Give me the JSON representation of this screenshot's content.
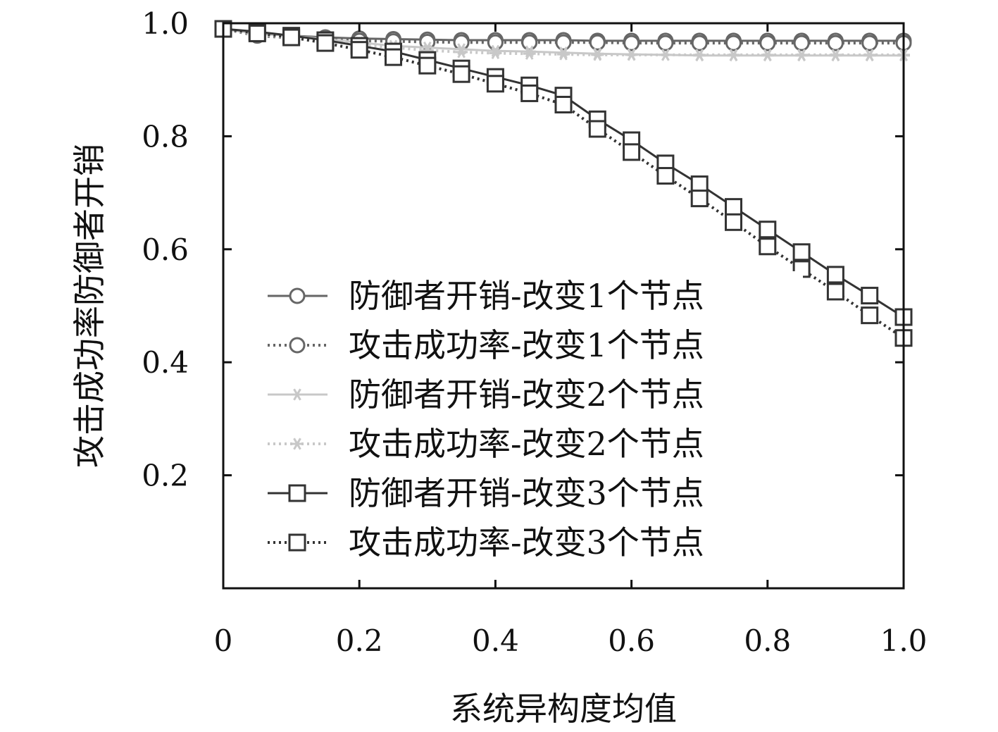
{
  "chart_data": {
    "type": "line",
    "xlabel": "系统异构度均值",
    "ylabel": "攻击成功率防御者开销",
    "xlim": [
      0,
      1.0
    ],
    "ylim": [
      0,
      1.0
    ],
    "x_ticks": [
      "0",
      "0.2",
      "0.4",
      "0.6",
      "0.8",
      "1.0"
    ],
    "y_ticks": [
      "0.2",
      "0.4",
      "0.6",
      "0.8",
      "1.0"
    ],
    "grid": false,
    "legend_position": "center-left",
    "x": [
      0,
      0.05,
      0.1,
      0.15,
      0.2,
      0.25,
      0.3,
      0.35,
      0.4,
      0.45,
      0.5,
      0.55,
      0.6,
      0.65,
      0.7,
      0.75,
      0.8,
      0.85,
      0.9,
      0.95,
      1.0
    ],
    "series": [
      {
        "name": "防御者开销-改变1个节点",
        "color": "#666666",
        "marker": "circle",
        "dash": "solid",
        "values": [
          0.99,
          0.982,
          0.978,
          0.975,
          0.973,
          0.972,
          0.971,
          0.97,
          0.97,
          0.97,
          0.97,
          0.969,
          0.969,
          0.969,
          0.969,
          0.969,
          0.969,
          0.969,
          0.969,
          0.969,
          0.969
        ]
      },
      {
        "name": "攻击成功率-改变1个节点",
        "color": "#666666",
        "marker": "circle",
        "dash": "dotted",
        "values": [
          0.99,
          0.978,
          0.974,
          0.971,
          0.969,
          0.968,
          0.967,
          0.966,
          0.966,
          0.966,
          0.966,
          0.966,
          0.965,
          0.965,
          0.965,
          0.965,
          0.965,
          0.965,
          0.965,
          0.965,
          0.965
        ]
      },
      {
        "name": "防御者开销-改变2个节点",
        "color": "#c8c8c8",
        "marker": "asterisk",
        "dash": "solid",
        "values": [
          0.99,
          0.983,
          0.978,
          0.972,
          0.966,
          0.96,
          0.957,
          0.954,
          0.951,
          0.95,
          0.948,
          0.946,
          0.945,
          0.944,
          0.943,
          0.943,
          0.943,
          0.943,
          0.943,
          0.943,
          0.943
        ]
      },
      {
        "name": "攻击成功率-改变2个节点",
        "color": "#c8c8c8",
        "marker": "asterisk",
        "dash": "dotted",
        "values": [
          0.99,
          0.98,
          0.975,
          0.969,
          0.962,
          0.957,
          0.952,
          0.949,
          0.947,
          0.946,
          0.945,
          0.944,
          0.944,
          0.944,
          0.944,
          0.944,
          0.944,
          0.944,
          0.944,
          0.944,
          0.944
        ]
      },
      {
        "name": "防御者开销-改变3个节点",
        "color": "#333333",
        "marker": "square",
        "dash": "solid",
        "values": [
          0.99,
          0.985,
          0.978,
          0.97,
          0.96,
          0.95,
          0.935,
          0.92,
          0.905,
          0.89,
          0.872,
          0.83,
          0.793,
          0.752,
          0.715,
          0.675,
          0.635,
          0.595,
          0.555,
          0.518,
          0.48
        ]
      },
      {
        "name": "攻击成功率-改变3个节点",
        "color": "#333333",
        "marker": "square",
        "dash": "dotted",
        "values": [
          0.99,
          0.982,
          0.975,
          0.965,
          0.953,
          0.94,
          0.925,
          0.91,
          0.893,
          0.876,
          0.856,
          0.813,
          0.772,
          0.73,
          0.69,
          0.648,
          0.605,
          0.565,
          0.525,
          0.483,
          0.443
        ]
      }
    ]
  }
}
